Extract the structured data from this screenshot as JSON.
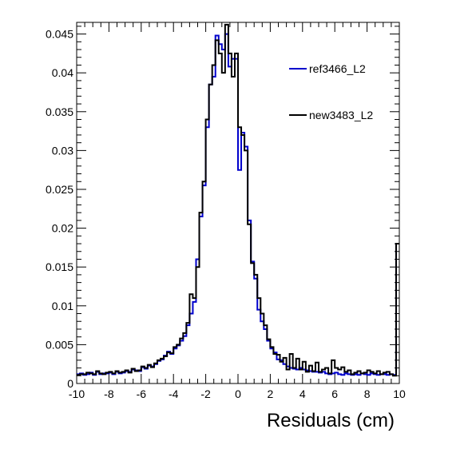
{
  "chart_data": {
    "type": "line",
    "style": "step-histogram",
    "xlabel": "Residuals (cm)",
    "ylabel": "",
    "title": "",
    "xlim": [
      -10,
      10
    ],
    "ylim": [
      0,
      0.0465
    ],
    "bin_width": 0.2,
    "x_start": -10,
    "grid": false,
    "legend_position": "top-right",
    "x_ticks": [
      -10,
      -8,
      -6,
      -4,
      -2,
      0,
      2,
      4,
      6,
      8,
      10
    ],
    "x_tick_labels": [
      "-10",
      "-8",
      "-6",
      "-4",
      "-2",
      "0",
      "2",
      "4",
      "6",
      "8",
      "10"
    ],
    "y_ticks": [
      0,
      0.005,
      0.01,
      0.015,
      0.02,
      0.025,
      0.03,
      0.035,
      0.04,
      0.045
    ],
    "y_tick_labels": [
      "0",
      "0.005",
      "0.01",
      "0.015",
      "0.02",
      "0.025",
      "0.03",
      "0.035",
      "0.04",
      "0.045"
    ],
    "series": [
      {
        "name": "ref3466_L2",
        "color": "#0000cc",
        "values": [
          0.0012,
          0.0013,
          0.0011,
          0.0012,
          0.0014,
          0.0011,
          0.0015,
          0.0012,
          0.0013,
          0.0013,
          0.0014,
          0.0012,
          0.0015,
          0.0013,
          0.0014,
          0.0016,
          0.0015,
          0.0018,
          0.0017,
          0.0016,
          0.0021,
          0.0019,
          0.0023,
          0.0022,
          0.0025,
          0.0029,
          0.0031,
          0.0036,
          0.0041,
          0.0038,
          0.0045,
          0.0049,
          0.0055,
          0.0061,
          0.0075,
          0.009,
          0.0105,
          0.016,
          0.0215,
          0.0255,
          0.033,
          0.0385,
          0.0395,
          0.0448,
          0.0437,
          0.043,
          0.045,
          0.0408,
          0.0418,
          0.0418,
          0.0275,
          0.0323,
          0.0305,
          0.021,
          0.0157,
          0.0135,
          0.0095,
          0.008,
          0.007,
          0.0055,
          0.0045,
          0.004,
          0.0031,
          0.003,
          0.0025,
          0.0022,
          0.002,
          0.0019,
          0.0018,
          0.002,
          0.0018,
          0.0017,
          0.0016,
          0.0015,
          0.0015,
          0.0014,
          0.0015,
          0.0013,
          0.0012,
          0.0013,
          0.0014,
          0.0012,
          0.0011,
          0.0013,
          0.0012,
          0.0011,
          0.0012,
          0.0011,
          0.0013,
          0.0012,
          0.0011,
          0.0013,
          0.0012,
          0.0011,
          0.0012,
          0.0012,
          0.0011,
          0.0012,
          0.0011,
          0.018
        ]
      },
      {
        "name": "new3483_L2",
        "color": "#000000",
        "values": [
          0.0011,
          0.0012,
          0.0012,
          0.0014,
          0.0013,
          0.0012,
          0.0016,
          0.0013,
          0.0012,
          0.0014,
          0.0015,
          0.0013,
          0.0016,
          0.0014,
          0.0015,
          0.0017,
          0.0014,
          0.0019,
          0.0016,
          0.0017,
          0.0022,
          0.002,
          0.0024,
          0.0021,
          0.0026,
          0.003,
          0.0032,
          0.0035,
          0.004,
          0.0039,
          0.0047,
          0.005,
          0.0058,
          0.0065,
          0.0078,
          0.0115,
          0.011,
          0.015,
          0.022,
          0.026,
          0.034,
          0.0385,
          0.041,
          0.0442,
          0.0425,
          0.04,
          0.0462,
          0.0425,
          0.0395,
          0.0425,
          0.033,
          0.032,
          0.03,
          0.0205,
          0.0155,
          0.014,
          0.011,
          0.009,
          0.0075,
          0.0057,
          0.0047,
          0.0038,
          0.0037,
          0.0028,
          0.0033,
          0.0018,
          0.0038,
          0.002,
          0.0032,
          0.0018,
          0.0028,
          0.0015,
          0.0023,
          0.0016,
          0.0027,
          0.0015,
          0.0018,
          0.002,
          0.0013,
          0.003,
          0.002,
          0.0018,
          0.0021,
          0.0015,
          0.0017,
          0.0012,
          0.0014,
          0.0016,
          0.0013,
          0.0014,
          0.0017,
          0.0015,
          0.0013,
          0.0016,
          0.0012,
          0.0014,
          0.0015,
          0.0012,
          0.001,
          0.018
        ]
      }
    ]
  }
}
